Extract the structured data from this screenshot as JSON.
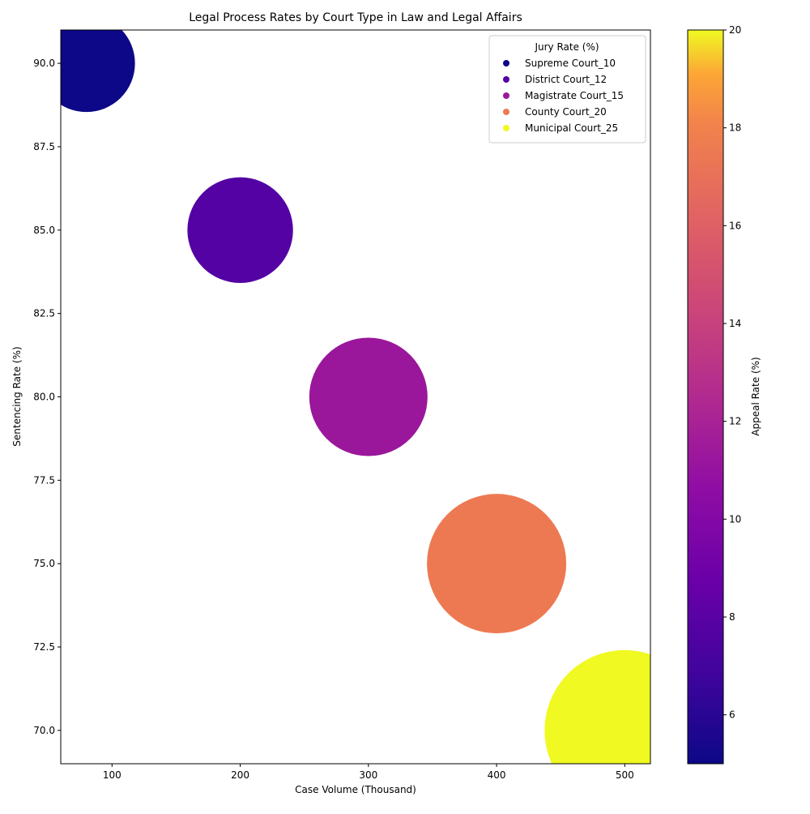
{
  "chart_data": {
    "type": "scatter",
    "title": "Legal Process Rates by Court Type in Law and Legal Affairs",
    "xlabel": "Case Volume (Thousand)",
    "ylabel": "Sentencing Rate (%)",
    "xlim": [
      60,
      520
    ],
    "ylim": [
      69,
      91
    ],
    "xticks": [
      100,
      200,
      300,
      400,
      500
    ],
    "yticks": [
      70.0,
      72.5,
      75.0,
      77.5,
      80.0,
      82.5,
      85.0,
      87.5,
      90.0
    ],
    "legend": {
      "title": "Jury Rate (%)",
      "placement": "top-right"
    },
    "colorbar": {
      "label": "Appeal Rate (%)",
      "range": [
        5,
        20
      ],
      "ticks": [
        6,
        8,
        10,
        12,
        14,
        16,
        18,
        20
      ],
      "colormap": "plasma"
    },
    "points": [
      {
        "label": "Supreme Court_10",
        "court": "Supreme Court",
        "jury_rate": 10,
        "x": 80,
        "y": 90,
        "appeal_rate": 5,
        "color": "#0d0887"
      },
      {
        "label": "District Court_12",
        "court": "District Court",
        "jury_rate": 12,
        "x": 200,
        "y": 85,
        "appeal_rate": 7,
        "color": "#5402a3"
      },
      {
        "label": "Magistrate Court_15",
        "court": "Magistrate Court",
        "jury_rate": 15,
        "x": 300,
        "y": 80,
        "appeal_rate": 10,
        "color": "#9a179b"
      },
      {
        "label": "County Court_20",
        "court": "County Court",
        "jury_rate": 20,
        "x": 400,
        "y": 75,
        "appeal_rate": 15,
        "color": "#ed7953"
      },
      {
        "label": "Municipal Court_25",
        "court": "Municipal Court",
        "jury_rate": 25,
        "x": 500,
        "y": 70,
        "appeal_rate": 20,
        "color": "#f0f921"
      }
    ],
    "grid": false
  }
}
